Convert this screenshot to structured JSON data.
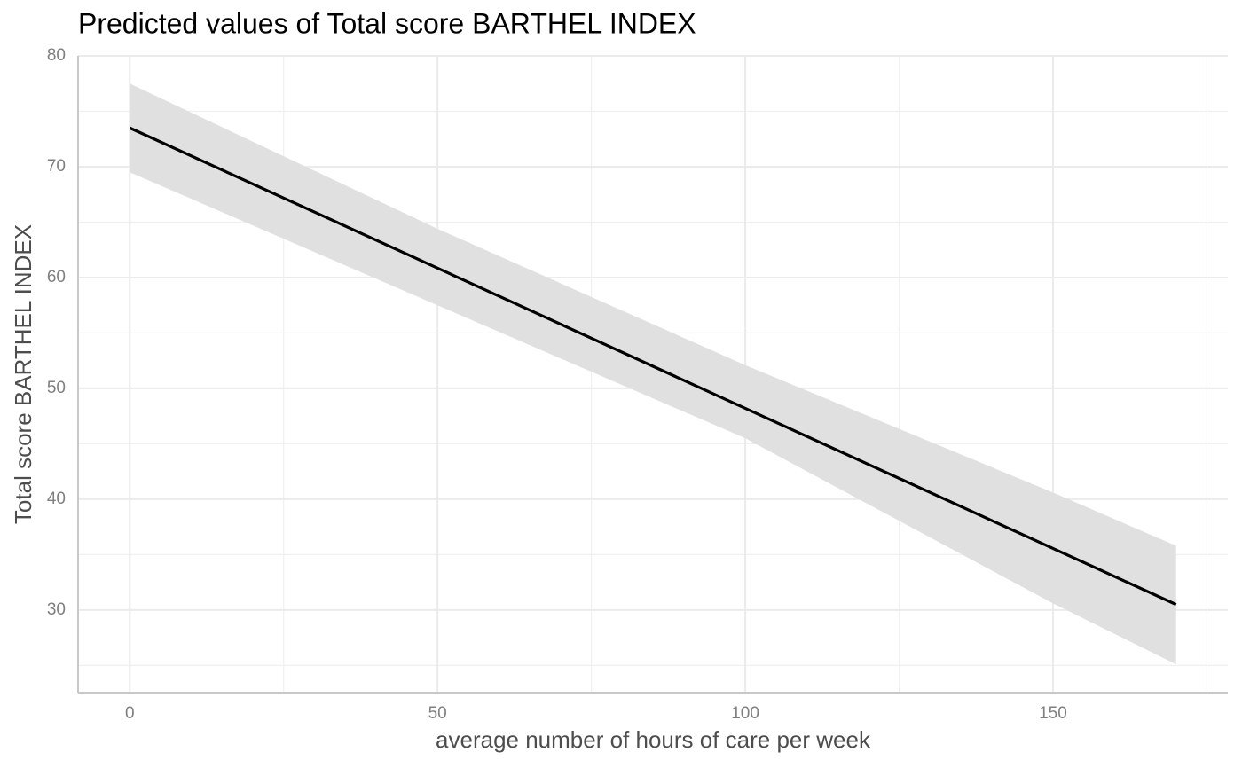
{
  "chart_data": {
    "type": "line",
    "title": "Predicted values of Total score BARTHEL INDEX",
    "x_label": "average number of hours of care per week",
    "y_label": "Total score BARTHEL INDEX",
    "x": [
      0,
      50,
      100,
      150,
      170
    ],
    "values": [
      73.5,
      60.85,
      48.2,
      35.56,
      30.5
    ],
    "lower": [
      69.5,
      57.5,
      45.5,
      30.6,
      25.1
    ],
    "upper": [
      77.5,
      64.4,
      52.1,
      40.6,
      35.8
    ],
    "color": "#000000",
    "band_color": "#e0e0e0",
    "xlim": [
      -8.4,
      178.4
    ],
    "ylim": [
      22.55,
      80
    ],
    "xticks": [
      0,
      50,
      100,
      150
    ],
    "yticks": [
      30,
      40,
      50,
      60,
      70,
      80
    ],
    "grid": true
  }
}
